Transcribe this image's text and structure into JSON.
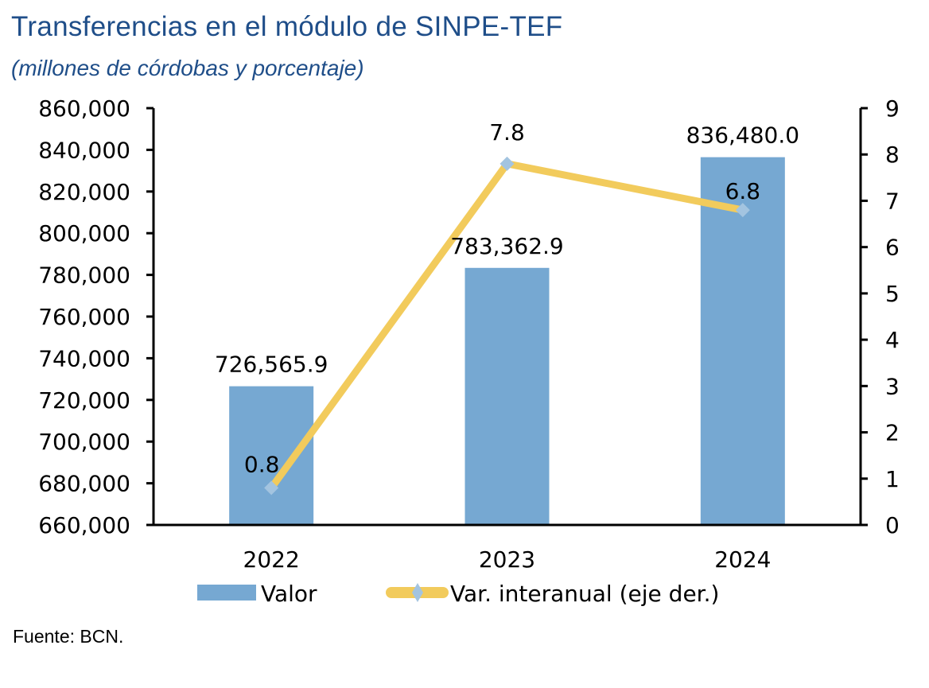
{
  "header": {
    "title": "Transferencias en el módulo de SINPE-TEF",
    "subtitle": "(millones de córdobas y porcentaje)"
  },
  "footer": {
    "source": "Fuente: BCN."
  },
  "chart_data": {
    "type": "bar",
    "title": "Transferencias en el módulo de SINPE-TEF",
    "subtitle": "(millones de córdobas y porcentaje)",
    "xlabel": "",
    "ylabel": "",
    "categories": [
      "2022",
      "2023",
      "2024"
    ],
    "series": [
      {
        "name": "Valor",
        "type": "bar",
        "axis": "left",
        "color": "#76A8D2",
        "values": [
          726565.9,
          783362.9,
          836480.0
        ],
        "labels": [
          "726,565.9",
          "783,362.9",
          "836,480.0"
        ]
      },
      {
        "name": "Var. interanual (eje der.)",
        "type": "line",
        "axis": "right",
        "color": "#F2CB5C",
        "marker": "diamond",
        "marker_color": "#A3C4E0",
        "values": [
          0.8,
          7.8,
          6.8
        ],
        "labels": [
          "0.8",
          "7.8",
          "6.8"
        ]
      }
    ],
    "y_left": {
      "ylim": [
        660000,
        860000
      ],
      "ticks": [
        660000,
        680000,
        700000,
        720000,
        740000,
        760000,
        780000,
        800000,
        820000,
        840000,
        860000
      ],
      "tick_labels": [
        "660,000",
        "680,000",
        "700,000",
        "720,000",
        "740,000",
        "760,000",
        "780,000",
        "800,000",
        "820,000",
        "840,000",
        "860,000"
      ]
    },
    "y_right": {
      "ylim": [
        0,
        9
      ],
      "ticks": [
        0,
        1,
        2,
        3,
        4,
        5,
        6,
        7,
        8,
        9
      ],
      "tick_labels": [
        "0",
        "1",
        "2",
        "3",
        "4",
        "5",
        "6",
        "7",
        "8",
        "9"
      ]
    },
    "grid": false,
    "legend": {
      "position": "bottom",
      "entries": [
        "Valor",
        "Var. interanual (eje der.)"
      ]
    },
    "source": "Fuente: BCN."
  }
}
